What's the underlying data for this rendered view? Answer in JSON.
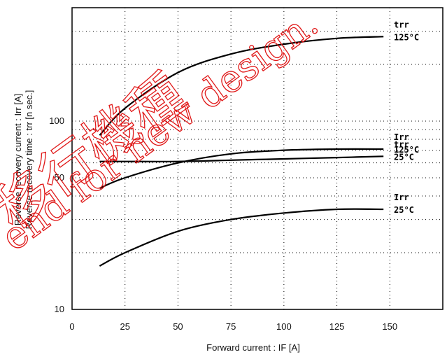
{
  "chart_data": {
    "type": "line",
    "xlabel": "Forward current  :  IF [A]",
    "ylabel_lines": [
      "Reverse recovery current  :  Irr [A]",
      "Reverse recovery  time  :  trr [n sec.]"
    ],
    "xlim": [
      0,
      175
    ],
    "ylim": [
      10,
      400
    ],
    "yscale": "log",
    "x_ticks": [
      "0",
      "25",
      "50",
      "75",
      "100",
      "125",
      "150"
    ],
    "y_ticks": [
      "10",
      "50",
      "100"
    ],
    "grid": true,
    "series": [
      {
        "name": "trr\n125°C",
        "x": [
          13,
          25,
          50,
          75,
          100,
          125,
          147
        ],
        "y": [
          84,
          117,
          181,
          227,
          256,
          275,
          281
        ]
      },
      {
        "name": "Irr\n125°C",
        "x": [
          13,
          25,
          50,
          75,
          100,
          125,
          147
        ],
        "y": [
          44,
          50,
          60,
          67,
          70,
          71,
          71
        ]
      },
      {
        "name": "trr\n25°C",
        "x": [
          13,
          25,
          50,
          75,
          100,
          125,
          147
        ],
        "y": [
          61,
          61,
          61,
          62,
          63,
          64,
          65
        ]
      },
      {
        "name": "Irr\n25°C",
        "x": [
          13,
          25,
          50,
          75,
          100,
          125,
          147
        ],
        "y": [
          17,
          20,
          26,
          30,
          32.5,
          34,
          34
        ]
      }
    ]
  },
  "watermark": {
    "jp": "移行機種",
    "en": "end for new design.",
    "color": "#e01818"
  }
}
